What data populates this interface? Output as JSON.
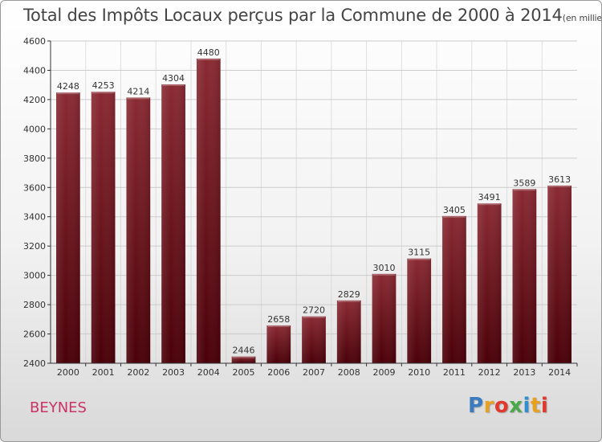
{
  "title": {
    "main": "Total des Impôts Locaux perçus par la Commune de 2000 à 2014",
    "unit": "(en milliers d'€)"
  },
  "commune": "BEYNES",
  "logo": {
    "text": "Proxiti"
  },
  "colors": {
    "bar_top": "#8a2a33",
    "bar_bottom": "#4a0008",
    "axis": "#333333",
    "grid": "#cccccc"
  },
  "chart_data": {
    "type": "bar",
    "title": "Total des Impôts Locaux perçus par la Commune de 2000 à 2014",
    "xlabel": "",
    "ylabel": "",
    "categories": [
      "2000",
      "2001",
      "2002",
      "2003",
      "2004",
      "2005",
      "2006",
      "2007",
      "2008",
      "2009",
      "2010",
      "2011",
      "2012",
      "2013",
      "2014"
    ],
    "values": [
      4248,
      4253,
      4214,
      4304,
      4480,
      2446,
      2658,
      2720,
      2829,
      3010,
      3115,
      3405,
      3491,
      3589,
      3613
    ],
    "ylim": [
      2400,
      4600
    ],
    "yticks": [
      2400,
      2600,
      2800,
      3000,
      3200,
      3400,
      3600,
      3800,
      4000,
      4200,
      4400,
      4600
    ],
    "grid": true,
    "data_labels": true
  }
}
